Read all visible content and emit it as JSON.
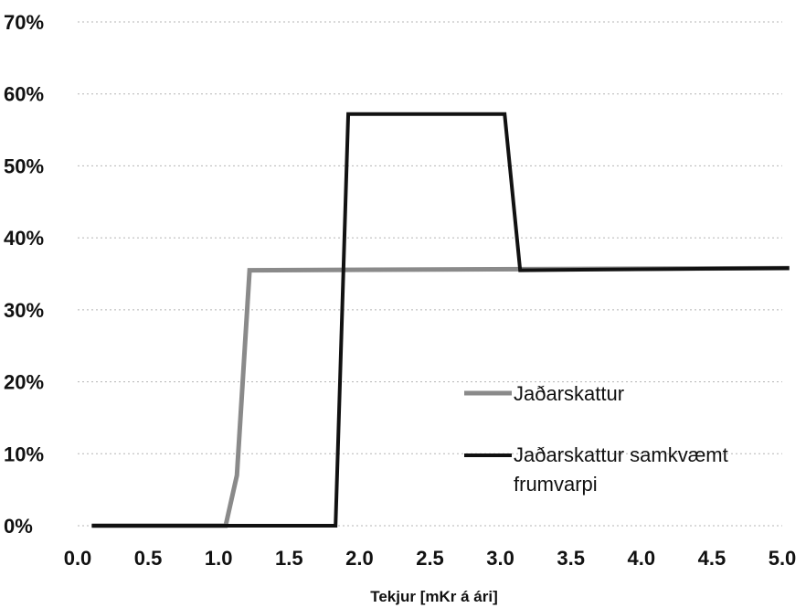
{
  "chart_data": {
    "type": "line",
    "title": "",
    "xlabel": "Tekjur [mKr á ári]",
    "ylabel": "",
    "xlim": [
      0.0,
      5.0
    ],
    "ylim": [
      0,
      0.7
    ],
    "x_ticks": [
      "0.0",
      "0.5",
      "1.0",
      "1.5",
      "2.0",
      "2.5",
      "3.0",
      "3.5",
      "4.0",
      "4.5",
      "5.0"
    ],
    "y_ticks": [
      "0%",
      "10%",
      "20%",
      "30%",
      "40%",
      "50%",
      "60%",
      "70%"
    ],
    "grid": "horizontal dotted",
    "legend_position": "right-inside",
    "series": [
      {
        "name": "Jaðarskattur",
        "color": "#8a8a8a",
        "points": [
          [
            0.1,
            0.0
          ],
          [
            1.05,
            0.0
          ],
          [
            1.13,
            0.07
          ],
          [
            1.22,
            0.355
          ],
          [
            5.05,
            0.358
          ]
        ]
      },
      {
        "name": "Jaðarskattur samkvæmt frumvarpi",
        "color": "#111111",
        "points": [
          [
            0.1,
            0.0
          ],
          [
            1.83,
            0.0
          ],
          [
            1.92,
            0.572
          ],
          [
            3.03,
            0.572
          ],
          [
            3.14,
            0.355
          ],
          [
            5.05,
            0.358
          ]
        ]
      }
    ]
  },
  "legend": [
    {
      "label": "Jaðarskattur"
    },
    {
      "label_line1": "Jaðarskattur samkvæmt",
      "label_line2": "frumvarpi"
    }
  ]
}
